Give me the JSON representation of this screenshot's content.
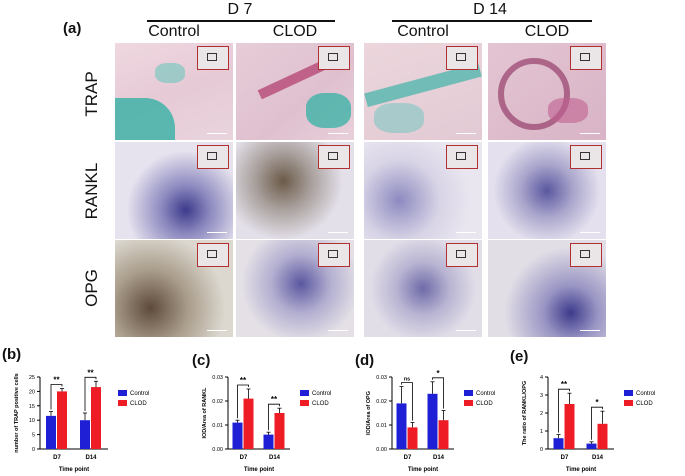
{
  "top_panel": {
    "letter": "(a)",
    "groups": [
      {
        "label": "D 7"
      },
      {
        "label": "D 14"
      }
    ],
    "columns": [
      "Control",
      "CLOD",
      "Control",
      "CLOD"
    ],
    "rows": [
      "TRAP",
      "RANKL",
      "OPG"
    ],
    "colors": {
      "trap_tissue": "#e8c8d4",
      "trap_stain": "#3fb3a8",
      "ihc_tissue": "#e6e2ee",
      "ihc_stain": "#3d3a8c",
      "opg_tissue": "#dcd8d0"
    }
  },
  "chart_data": [
    {
      "id": "b",
      "letter": "(b)",
      "type": "bar",
      "categories": [
        "D7",
        "D14"
      ],
      "series": [
        {
          "name": "Control",
          "color": "#1f1fd6",
          "values": [
            11.5,
            10.0
          ],
          "errors": [
            1.5,
            2.5
          ]
        },
        {
          "name": "CLOD",
          "color": "#ee1c24",
          "values": [
            20.0,
            21.5
          ],
          "errors": [
            1.0,
            2.0
          ]
        }
      ],
      "xlabel": "Time point",
      "ylabel": "number of TRAP positive cells",
      "ylim": [
        0,
        25
      ],
      "yticks": [
        "0",
        "5",
        "10",
        "15",
        "20",
        "25"
      ],
      "significance": [
        "**",
        "**"
      ],
      "legend": "right"
    },
    {
      "id": "c",
      "letter": "(c)",
      "type": "bar",
      "categories": [
        "D7",
        "D14"
      ],
      "series": [
        {
          "name": "Control",
          "color": "#1f1fd6",
          "values": [
            0.011,
            0.006
          ],
          "errors": [
            0.001,
            0.001
          ]
        },
        {
          "name": "CLOD",
          "color": "#ee1c24",
          "values": [
            0.021,
            0.015
          ],
          "errors": [
            0.004,
            0.002
          ]
        }
      ],
      "xlabel": "Time point",
      "ylabel": "IOD/Area of RANKL",
      "ylim": [
        0,
        0.03
      ],
      "yticks": [
        "0.00",
        "0.01",
        "0.02",
        "0.03"
      ],
      "significance": [
        "**",
        "**"
      ],
      "legend": "right"
    },
    {
      "id": "d",
      "letter": "(d)",
      "type": "bar",
      "categories": [
        "D7",
        "D14"
      ],
      "series": [
        {
          "name": "Control",
          "color": "#1f1fd6",
          "values": [
            0.019,
            0.023
          ],
          "errors": [
            0.007,
            0.005
          ]
        },
        {
          "name": "CLOD",
          "color": "#ee1c24",
          "values": [
            0.009,
            0.012
          ],
          "errors": [
            0.002,
            0.004
          ]
        }
      ],
      "xlabel": "Time point",
      "ylabel": "IOD/Area of OPG",
      "ylim": [
        0,
        0.03
      ],
      "yticks": [
        "0.00",
        "0.01",
        "0.02",
        "0.03"
      ],
      "significance": [
        "ns",
        "*"
      ],
      "legend": "right"
    },
    {
      "id": "e",
      "letter": "(e)",
      "type": "bar",
      "categories": [
        "D7",
        "D14"
      ],
      "series": [
        {
          "name": "Control",
          "color": "#1f1fd6",
          "values": [
            0.6,
            0.3
          ],
          "errors": [
            0.2,
            0.1
          ]
        },
        {
          "name": "CLOD",
          "color": "#ee1c24",
          "values": [
            2.5,
            1.4
          ],
          "errors": [
            0.6,
            0.7
          ]
        }
      ],
      "xlabel": "Time point",
      "ylabel": "The ratio of RANKL/OPG",
      "ylim": [
        0,
        4
      ],
      "yticks": [
        "0",
        "1",
        "2",
        "3",
        "4"
      ],
      "significance": [
        "**",
        "*"
      ],
      "legend": "right"
    }
  ]
}
